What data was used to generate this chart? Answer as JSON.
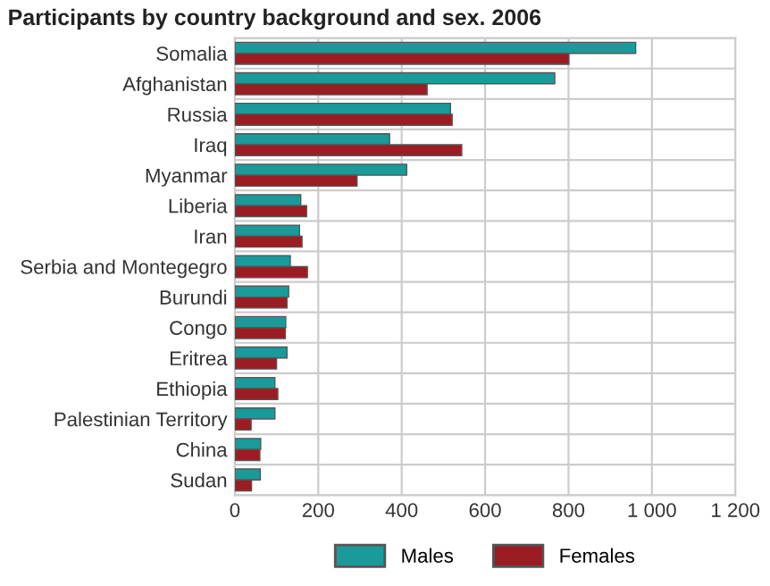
{
  "chart_data": {
    "type": "bar",
    "orientation": "horizontal",
    "title": "Participants by country background and sex. 2006",
    "categories": [
      "Somalia",
      "Afghanistan",
      "Russia",
      "Iraq",
      "Myanmar",
      "Liberia",
      "Iran",
      "Serbia and Montegegro",
      "Burundi",
      "Congo",
      "Eritrea",
      "Ethiopia",
      "Palestinian Territory",
      "China",
      "Sudan"
    ],
    "series": [
      {
        "name": "Males",
        "color": "#1a9a9a",
        "values": [
          961,
          767,
          517,
          371,
          412,
          158,
          155,
          133,
          129,
          122,
          125,
          96,
          96,
          62,
          61
        ]
      },
      {
        "name": "Females",
        "color": "#9b1c22",
        "values": [
          801,
          461,
          521,
          544,
          293,
          172,
          161,
          174,
          125,
          121,
          100,
          103,
          39,
          60,
          40
        ]
      }
    ],
    "xlim": [
      0,
      1200
    ],
    "xticks": [
      0,
      200,
      400,
      600,
      800,
      {
        "value": 1000,
        "label": "1 000"
      },
      {
        "value": 1200,
        "label": "1 200"
      }
    ],
    "grid": true,
    "legend": "bottom"
  }
}
